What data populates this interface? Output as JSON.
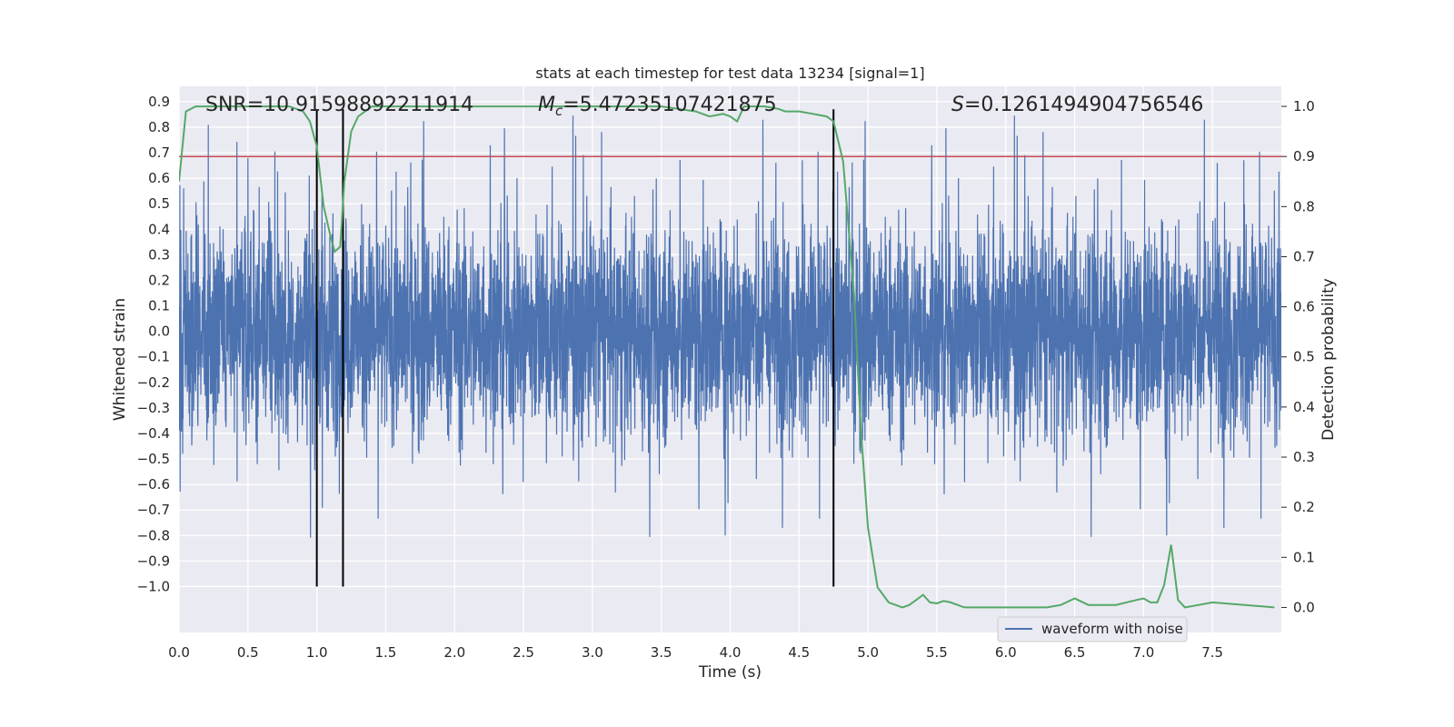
{
  "chart_data": {
    "type": "line",
    "title": "stats at each timestep for test data 13234 [signal=1]",
    "xlabel": "Time (s)",
    "ylabel": "Whitened strain",
    "y2label": "Detection probability",
    "xlim": [
      0,
      8
    ],
    "ylim": [
      -1.18,
      0.96
    ],
    "y2lim": [
      -0.05,
      1.04
    ],
    "xticks": [
      0.0,
      0.5,
      1.0,
      1.5,
      2.0,
      2.5,
      3.0,
      3.5,
      4.0,
      4.5,
      5.0,
      5.5,
      6.0,
      6.5,
      7.0,
      7.5
    ],
    "xtick_labels": [
      "0.0",
      "0.5",
      "1.0",
      "1.5",
      "2.0",
      "2.5",
      "3.0",
      "3.5",
      "4.0",
      "4.5",
      "5.0",
      "5.5",
      "6.0",
      "6.5",
      "7.0",
      "7.5"
    ],
    "yticks": [
      0.9,
      0.8,
      0.7,
      0.6,
      0.5,
      0.4,
      0.3,
      0.2,
      0.1,
      0.0,
      -0.1,
      -0.2,
      -0.3,
      -0.4,
      -0.5,
      -0.6,
      -0.7,
      -0.8,
      -0.9,
      -1.0
    ],
    "ytick_labels": [
      "0.9",
      "0.8",
      "0.7",
      "0.6",
      "0.5",
      "0.4",
      "0.3",
      "0.2",
      "0.1",
      "0.0",
      "−0.1",
      "−0.2",
      "−0.3",
      "−0.4",
      "−0.5",
      "−0.6",
      "−0.7",
      "−0.8",
      "−0.9",
      "−1.0"
    ],
    "y2ticks": [
      1.0,
      0.9,
      0.8,
      0.7,
      0.6,
      0.5,
      0.4,
      0.3,
      0.2,
      0.1,
      0.0
    ],
    "y2tick_labels": [
      "1.0",
      "0.9",
      "0.8",
      "0.7",
      "0.6",
      "0.5",
      "0.4",
      "0.3",
      "0.2",
      "0.1",
      "0.0"
    ],
    "annotations": {
      "snr": "SNR=10.91598892211914",
      "mc_symbol": "M",
      "mc_sub": "c",
      "mc_value": "=5.47235107421875",
      "s_symbol": "S",
      "s_value": "=0.1261494904756546"
    },
    "legend": {
      "label": "waveform with noise",
      "placement": "lower-right"
    },
    "threshold": {
      "value": 0.9,
      "axis": "y2"
    },
    "vlines": [
      1.0,
      1.19,
      4.75
    ],
    "vline_ymax": 0.87,
    "waveform": {
      "name": "waveform with noise",
      "amplitude_envelope": 0.5,
      "peak_max": 0.87,
      "peak_min": -0.87,
      "x_range": [
        0,
        8
      ]
    },
    "probability": {
      "name": "detection probability",
      "x": [
        0.0,
        0.05,
        0.12,
        0.2,
        0.8,
        0.9,
        0.95,
        1.0,
        1.05,
        1.1,
        1.13,
        1.17,
        1.2,
        1.25,
        1.3,
        1.4,
        1.5,
        2.0,
        3.0,
        3.5,
        3.75,
        3.85,
        3.95,
        4.0,
        4.05,
        4.1,
        4.15,
        4.25,
        4.35,
        4.4,
        4.5,
        4.6,
        4.7,
        4.75,
        4.82,
        4.9,
        4.95,
        5.0,
        5.07,
        5.15,
        5.25,
        5.3,
        5.35,
        5.4,
        5.45,
        5.5,
        5.55,
        5.6,
        5.65,
        5.7,
        6.0,
        6.3,
        6.4,
        6.5,
        6.6,
        6.8,
        6.95,
        7.0,
        7.05,
        7.1,
        7.15,
        7.2,
        7.25,
        7.3,
        7.4,
        7.5,
        7.95
      ],
      "y": [
        0.85,
        0.99,
        1.0,
        1.0,
        1.0,
        0.99,
        0.97,
        0.92,
        0.8,
        0.74,
        0.71,
        0.72,
        0.85,
        0.95,
        0.98,
        1.0,
        1.0,
        1.0,
        1.0,
        1.0,
        0.99,
        0.98,
        0.985,
        0.98,
        0.97,
        1.0,
        1.0,
        1.0,
        0.995,
        0.99,
        0.99,
        0.985,
        0.98,
        0.97,
        0.89,
        0.62,
        0.35,
        0.16,
        0.04,
        0.01,
        0.0,
        0.005,
        0.015,
        0.025,
        0.01,
        0.008,
        0.013,
        0.01,
        0.005,
        0.0,
        0.0,
        0.0,
        0.005,
        0.018,
        0.005,
        0.005,
        0.015,
        0.018,
        0.01,
        0.01,
        0.045,
        0.125,
        0.015,
        0.0,
        0.005,
        0.01,
        0.0
      ]
    },
    "colors": {
      "waveform": "#4c72b0",
      "probability": "#55a868",
      "threshold": "#c44e52",
      "vline": "#000000",
      "background": "#eaeaf2",
      "grid": "#ffffff"
    }
  }
}
